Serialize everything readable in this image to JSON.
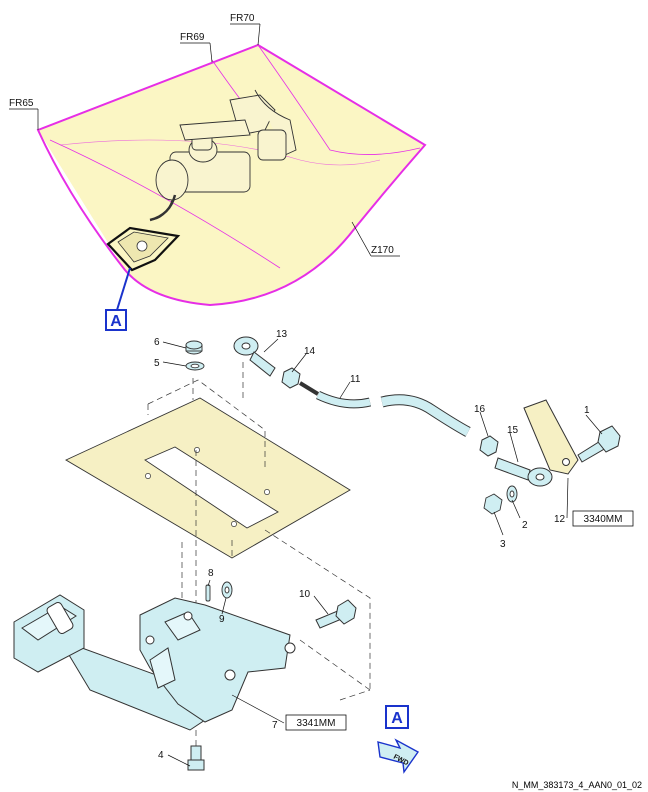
{
  "frames": {
    "fr65": "FR65",
    "fr69": "FR69",
    "fr70": "FR70"
  },
  "zone": "Z170",
  "view_marker": "A",
  "detail_marker": "A",
  "fwd_label": "FWD",
  "callouts": [
    "1",
    "2",
    "3",
    "4",
    "5",
    "6",
    "7",
    "8",
    "9",
    "10",
    "11",
    "12",
    "13",
    "14",
    "15",
    "16"
  ],
  "ref_boxes": {
    "r12": "3340MM",
    "r7": "3341MM"
  },
  "figure_id": "N_MM_383173_4_AAN0_01_02",
  "colors": {
    "zone_outline": "#e62ee6",
    "zone_fill": "#fbf6c4",
    "part_fill": "#cfeef2",
    "marker_blue": "#1a33cc",
    "floor_fill": "#f6f0c4"
  }
}
